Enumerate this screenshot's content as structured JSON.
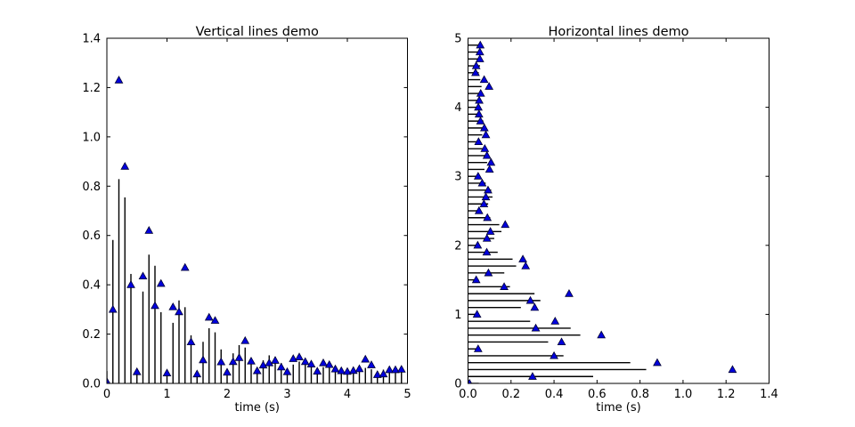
{
  "figure": {
    "background": "#ffffff"
  },
  "style": {
    "axis_color": "#000000",
    "stem_color": "#000000",
    "marker_fill": "#0000dd",
    "marker_edge": "#000033",
    "text_color": "#000000"
  },
  "chart_data": [
    {
      "type": "stem",
      "orientation": "vertical",
      "title": "Vertical lines demo",
      "xlabel": "time (s)",
      "ylabel": "",
      "xlim": [
        0,
        5
      ],
      "ylim": [
        0,
        1.4
      ],
      "xticks": [
        "0",
        "1",
        "2",
        "3",
        "4",
        "5"
      ],
      "xtick_values": [
        0,
        1,
        2,
        3,
        4,
        5
      ],
      "yticks": [
        "0.0",
        "0.2",
        "0.4",
        "0.6",
        "0.8",
        "1.0",
        "1.2",
        "1.4"
      ],
      "ytick_values": [
        0,
        0.2,
        0.4,
        0.6,
        0.8,
        1.0,
        1.2,
        1.4
      ],
      "grid": false,
      "legend": null,
      "t": [
        0.0,
        0.1,
        0.2,
        0.3,
        0.4,
        0.5,
        0.6,
        0.7,
        0.8,
        0.9,
        1.0,
        1.1,
        1.2,
        1.3,
        1.4,
        1.5,
        1.6,
        1.7,
        1.8,
        1.9,
        2.0,
        2.1,
        2.2,
        2.3,
        2.4,
        2.5,
        2.6,
        2.7,
        2.8,
        2.9,
        3.0,
        3.1,
        3.2,
        3.3,
        3.4,
        3.5,
        3.6,
        3.7,
        3.8,
        3.9,
        4.0,
        4.1,
        4.2,
        4.3,
        4.4,
        4.5,
        4.6,
        4.7,
        4.8,
        4.9
      ],
      "line_lengths": [
        0.05,
        0.5819,
        0.8287,
        0.7546,
        0.444,
        0.05,
        0.3726,
        0.5223,
        0.4774,
        0.289,
        0.05,
        0.2457,
        0.3365,
        0.3092,
        0.195,
        0.05,
        0.1687,
        0.2238,
        0.2072,
        0.1379,
        0.05,
        0.122,
        0.1554,
        0.1454,
        0.1033,
        0.05,
        0.0937,
        0.1139,
        0.1078,
        0.0823,
        0.05,
        0.0765,
        0.0888,
        0.0851,
        0.0696,
        0.05,
        0.0661,
        0.0735,
        0.0713,
        0.0619,
        0.05,
        0.0597,
        0.0643,
        0.0629,
        0.0572,
        0.05,
        0.0559,
        0.0587,
        0.0578,
        0.0544
      ],
      "marker_values": [
        0.007,
        0.3,
        1.23,
        0.88,
        0.4,
        0.047,
        0.435,
        0.62,
        0.315,
        0.405,
        0.042,
        0.31,
        0.29,
        0.47,
        0.168,
        0.038,
        0.095,
        0.268,
        0.255,
        0.087,
        0.045,
        0.088,
        0.104,
        0.173,
        0.09,
        0.051,
        0.074,
        0.083,
        0.093,
        0.066,
        0.047,
        0.1,
        0.107,
        0.088,
        0.078,
        0.049,
        0.083,
        0.076,
        0.058,
        0.051,
        0.048,
        0.052,
        0.059,
        0.098,
        0.075,
        0.035,
        0.038,
        0.055,
        0.055,
        0.057
      ]
    },
    {
      "type": "stem",
      "orientation": "horizontal",
      "title": "Horizontal lines demo",
      "xlabel": "time (s)",
      "ylabel": "",
      "xlim": [
        0,
        1.4
      ],
      "ylim": [
        0,
        5
      ],
      "xticks": [
        "0.0",
        "0.2",
        "0.4",
        "0.6",
        "0.8",
        "1.0",
        "1.2",
        "1.4"
      ],
      "xtick_values": [
        0,
        0.2,
        0.4,
        0.6,
        0.8,
        1.0,
        1.2,
        1.4
      ],
      "yticks": [
        "0",
        "1",
        "2",
        "3",
        "4",
        "5"
      ],
      "ytick_values": [
        0,
        1,
        2,
        3,
        4,
        5
      ],
      "grid": false,
      "legend": null,
      "t": [
        0.0,
        0.1,
        0.2,
        0.3,
        0.4,
        0.5,
        0.6,
        0.7,
        0.8,
        0.9,
        1.0,
        1.1,
        1.2,
        1.3,
        1.4,
        1.5,
        1.6,
        1.7,
        1.8,
        1.9,
        2.0,
        2.1,
        2.2,
        2.3,
        2.4,
        2.5,
        2.6,
        2.7,
        2.8,
        2.9,
        3.0,
        3.1,
        3.2,
        3.3,
        3.4,
        3.5,
        3.6,
        3.7,
        3.8,
        3.9,
        4.0,
        4.1,
        4.2,
        4.3,
        4.4,
        4.5,
        4.6,
        4.7,
        4.8,
        4.9
      ],
      "line_lengths": [
        0.05,
        0.5819,
        0.8287,
        0.7546,
        0.444,
        0.05,
        0.3726,
        0.5223,
        0.4774,
        0.289,
        0.05,
        0.2457,
        0.3365,
        0.3092,
        0.195,
        0.05,
        0.1687,
        0.2238,
        0.2072,
        0.1379,
        0.05,
        0.122,
        0.1554,
        0.1454,
        0.1033,
        0.05,
        0.0937,
        0.1139,
        0.1078,
        0.0823,
        0.05,
        0.0765,
        0.0888,
        0.0851,
        0.0696,
        0.05,
        0.0661,
        0.0735,
        0.0713,
        0.0619,
        0.05,
        0.0597,
        0.0643,
        0.0629,
        0.0572,
        0.05,
        0.0559,
        0.0587,
        0.0578,
        0.0544
      ],
      "marker_values": [
        0.007,
        0.3,
        1.23,
        0.88,
        0.4,
        0.047,
        0.435,
        0.62,
        0.315,
        0.405,
        0.042,
        0.31,
        0.29,
        0.47,
        0.168,
        0.038,
        0.095,
        0.268,
        0.255,
        0.087,
        0.045,
        0.088,
        0.104,
        0.173,
        0.09,
        0.051,
        0.074,
        0.083,
        0.093,
        0.066,
        0.047,
        0.1,
        0.107,
        0.088,
        0.078,
        0.049,
        0.083,
        0.076,
        0.058,
        0.051,
        0.048,
        0.052,
        0.059,
        0.098,
        0.075,
        0.035,
        0.038,
        0.055,
        0.055,
        0.057
      ]
    }
  ]
}
